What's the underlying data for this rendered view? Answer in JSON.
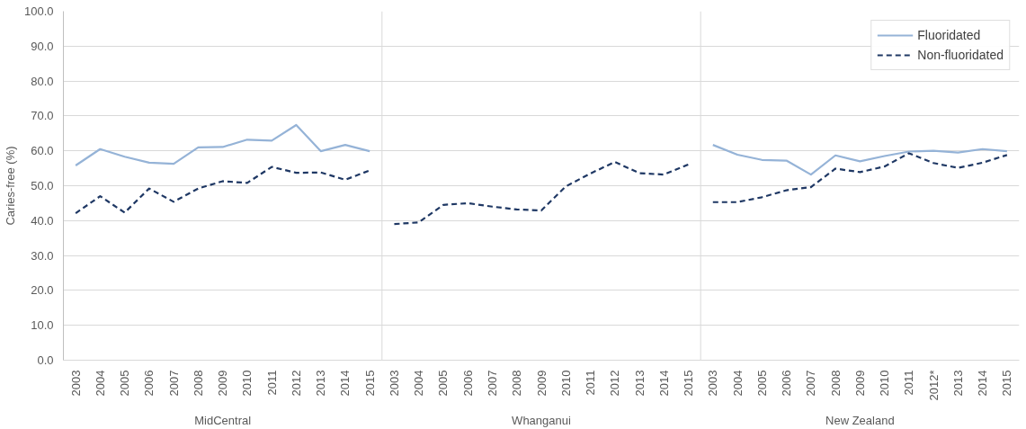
{
  "chart_data": {
    "type": "line",
    "ylabel": "Caries-free (%)",
    "categories": [
      "2003",
      "2004",
      "2005",
      "2006",
      "2007",
      "2008",
      "2009",
      "2010",
      "2011",
      "2012",
      "2013",
      "2014",
      "2015",
      "2003",
      "2004",
      "2005",
      "2006",
      "2007",
      "2008",
      "2009",
      "2010",
      "2011",
      "2012",
      "2013",
      "2014",
      "2015",
      "2003",
      "2004",
      "2005",
      "2006",
      "2007",
      "2008",
      "2009",
      "2010",
      "2011",
      "2012*",
      "2013",
      "2014",
      "2015"
    ],
    "annotations": [
      "MidCentral",
      "Whanganui",
      "New Zealand"
    ],
    "series": [
      {
        "name": "Fluoridated",
        "color": "#95b3d7",
        "line_style": "solid",
        "values": [
          55.8,
          60.5,
          58.3,
          56.6,
          56.3,
          61.0,
          61.1,
          63.2,
          62.9,
          67.4,
          59.9,
          61.7,
          59.9,
          null,
          null,
          null,
          null,
          null,
          null,
          null,
          null,
          null,
          null,
          null,
          null,
          null,
          61.7,
          58.9,
          57.4,
          57.2,
          53.2,
          58.7,
          57.0,
          58.5,
          59.8,
          60.0,
          59.5,
          60.5,
          59.9
        ]
      },
      {
        "name": "Non-fluoridated",
        "color": "#1f3864",
        "line_style": "dashed",
        "values": [
          42.1,
          47.0,
          42.3,
          49.2,
          45.4,
          49.2,
          51.3,
          50.8,
          55.4,
          53.7,
          53.8,
          51.7,
          54.4,
          39.0,
          39.5,
          44.5,
          45.0,
          44.0,
          43.2,
          42.9,
          49.8,
          53.5,
          56.8,
          53.6,
          53.2,
          56.1,
          45.3,
          45.3,
          46.7,
          48.7,
          49.6,
          54.9,
          53.9,
          55.5,
          59.3,
          56.5,
          55.1,
          56.6,
          58.8
        ]
      }
    ],
    "ylim": [
      0,
      100
    ],
    "yticks": [
      {
        "value": 0,
        "label": "0.0"
      },
      {
        "value": 10,
        "label": "10.0"
      },
      {
        "value": 20,
        "label": "20.0"
      },
      {
        "value": 30,
        "label": "30.0"
      },
      {
        "value": 40,
        "label": "40.0"
      },
      {
        "value": 50,
        "label": "50.0"
      },
      {
        "value": 60,
        "label": "60.0"
      },
      {
        "value": 70,
        "label": "70.0"
      },
      {
        "value": 80,
        "label": "80.0"
      },
      {
        "value": 90,
        "label": "90.0"
      },
      {
        "value": 100,
        "label": "100.0"
      }
    ],
    "grid": "y",
    "legend": "top right"
  }
}
